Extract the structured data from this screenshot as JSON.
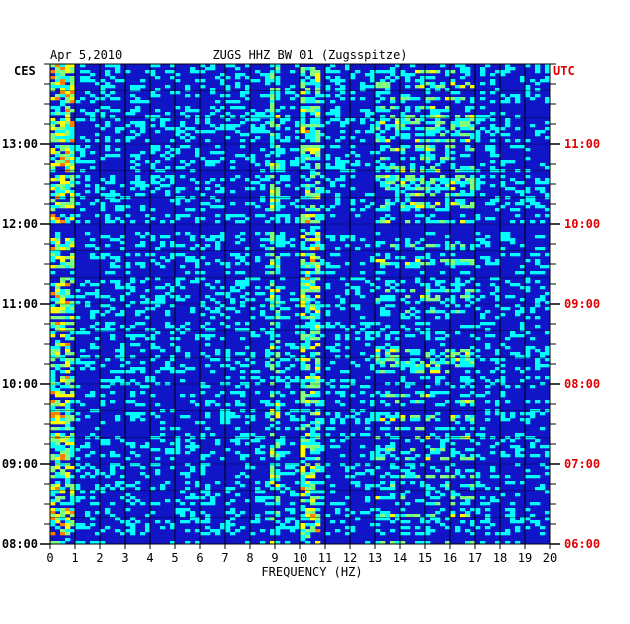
{
  "chart_data": {
    "type": "heatmap",
    "title_date": "Apr 5,2010",
    "title": "ZUGS HHZ BW 01 (Zugsspitze)",
    "left_axis_label": "CES",
    "right_axis_label": "UTC",
    "xlabel": "FREQUENCY (HZ)",
    "xlim": [
      0,
      20
    ],
    "x_ticks": [
      "0",
      "1",
      "2",
      "3",
      "4",
      "5",
      "6",
      "7",
      "8",
      "9",
      "10",
      "11",
      "12",
      "13",
      "14",
      "15",
      "16",
      "17",
      "18",
      "19",
      "20"
    ],
    "left_ticks": [
      "13:00",
      "12:00",
      "11:00",
      "10:00",
      "09:00",
      "08:00"
    ],
    "right_ticks": [
      "11:00",
      "10:00",
      "09:00",
      "08:00",
      "07:00",
      "06:00"
    ],
    "grid": true,
    "colors": {
      "background": "#1016c8",
      "axis_left": "#000000",
      "axis_right": "#e00000",
      "scale": [
        "#000080",
        "#0000ff",
        "#00a0ff",
        "#00ffff",
        "#80ff80",
        "#ffff00",
        "#ff8000",
        "#ff0000"
      ]
    }
  }
}
